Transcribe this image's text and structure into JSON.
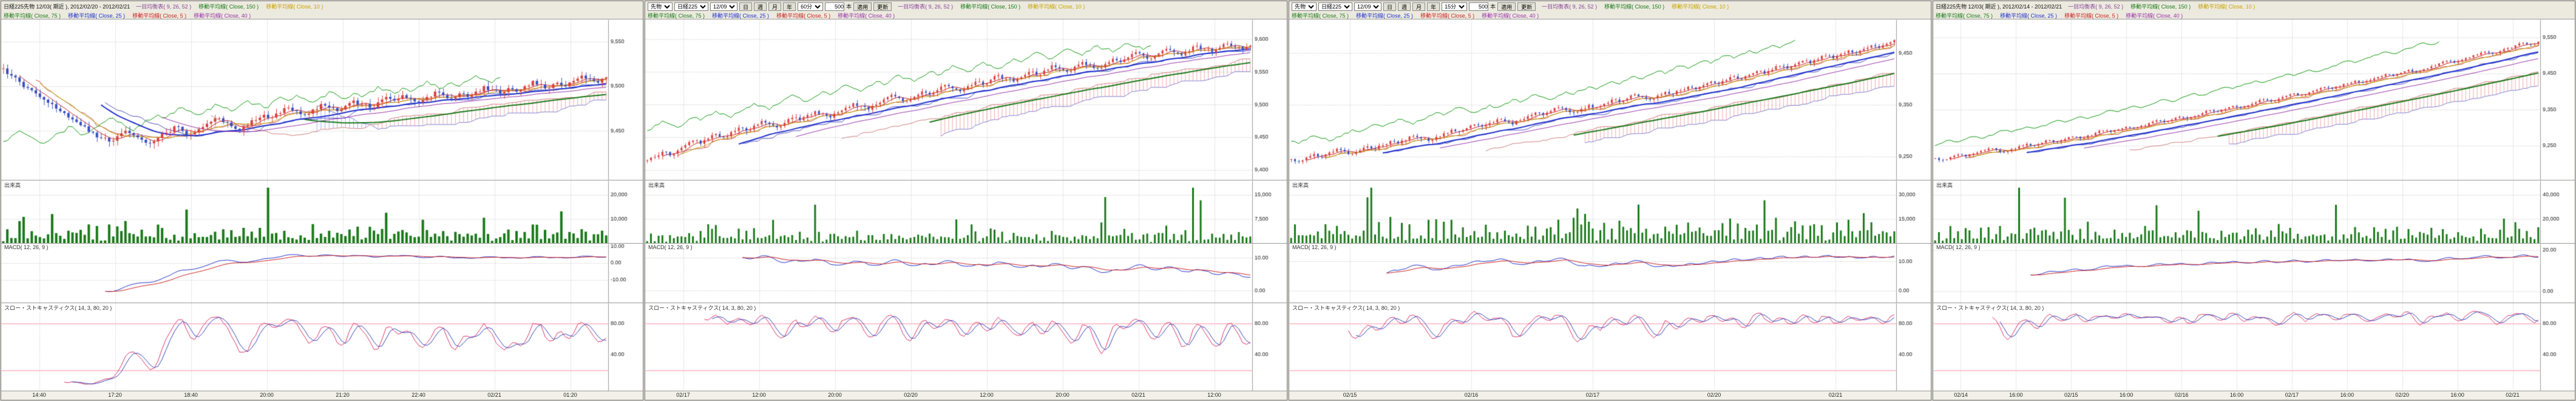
{
  "app": {
    "background": "#cfccc3"
  },
  "colors": {
    "chart_bg": "#ffffff",
    "grid": "#b8b8b8",
    "candle_up": "#d94040",
    "candle_down": "#3b4fc0",
    "cloud_up": "rgba(220,70,70,0.45)",
    "cloud_down": "rgba(70,70,220,0.45)",
    "volume": "#1a7a1a",
    "macd_line": "#2233cc",
    "macd_signal": "#cc2222",
    "stoch_k": "#dd3366",
    "stoch_d": "#3344bb",
    "stoch_level": "#ff8fa3",
    "axis_text": "#222222"
  },
  "ma_lines": [
    {
      "period": 5,
      "color": "#cc2222",
      "width": 1
    },
    {
      "period": 10,
      "color": "#c8a400",
      "width": 1
    },
    {
      "period": 25,
      "color": "#2233cc",
      "width": 2
    },
    {
      "period": 40,
      "color": "#9933aa",
      "width": 1
    },
    {
      "period": 75,
      "color": "#1a7a1a",
      "width": 2
    }
  ],
  "ichimoku": {
    "tenkan": 9,
    "kijun": 26,
    "senkou": 52,
    "colors": {
      "tenkan": "#c05050",
      "kijun": "#5050c0",
      "chikou": "#119911",
      "spanA": "#d08080",
      "spanB": "#8080d0"
    }
  },
  "pane_labels": {
    "volume": "出来高",
    "macd": "MACD( 12, 26, 9 )",
    "stoch": "スロー・ストキャスティクス( 14, 3, 80, 20 )"
  },
  "panels": [
    {
      "title": "日経225先物 12/03( 期近 ), 2012/02/20 - 2012/02/21",
      "toolbar": null,
      "legend_row1": [
        {
          "label": "一目均衡表( 9, 26, 52 )",
          "color": "#884499"
        },
        {
          "label": "移動平均線( Close, 150 )",
          "color": "#1a7a1a"
        },
        {
          "label": "移動平均線( Close, 10 )",
          "color": "#c8a400"
        }
      ],
      "legend_row2": [
        {
          "label": "移動平均線( Close, 75 )",
          "color": "#1a7a1a"
        },
        {
          "label": "移動平均線( Close, 25 )",
          "color": "#2233cc"
        },
        {
          "label": "移動平均線( Close, 5 )",
          "color": "#cc2222"
        },
        {
          "label": "移動平均線( Close, 40 )",
          "color": "#9933aa"
        }
      ],
      "chart_data": {
        "type": "candlestick",
        "x_labels": [
          "14:40",
          "17:20",
          "18:40",
          "20:00",
          "21:20",
          "22:40",
          "02/21",
          "01:20"
        ],
        "y_domain": [
          9395,
          9575
        ],
        "y_ticks": [
          9550,
          9500,
          9450
        ],
        "closes": [
          9520,
          9512,
          9505,
          9498,
          9492,
          9485,
          9480,
          9472,
          9465,
          9460,
          9455,
          9448,
          9442,
          9438,
          9444,
          9450,
          9445,
          9440,
          9436,
          9442,
          9448,
          9455,
          9450,
          9446,
          9452,
          9458,
          9464,
          9460,
          9455,
          9450,
          9456,
          9462,
          9468,
          9465,
          9470,
          9476,
          9472,
          9468,
          9474,
          9480,
          9476,
          9472,
          9478,
          9484,
          9480,
          9476,
          9482,
          9488,
          9484,
          9490,
          9486,
          9482,
          9488,
          9494,
          9490,
          9486,
          9492,
          9488,
          9494,
          9500,
          9496,
          9492,
          9498,
          9494,
          9500,
          9506,
          9502,
          9498,
          9504,
          9500,
          9506,
          9512,
          9508,
          9504,
          9510
        ],
        "volume_ticks": [
          20000,
          10000
        ],
        "macd_ticks": [
          10,
          0,
          -10
        ],
        "stoch_ticks": [
          80,
          40
        ],
        "stoch_levels": [
          80,
          20
        ]
      }
    },
    {
      "title": null,
      "toolbar": {
        "selects": [
          "先物",
          "日経225",
          "12/09"
        ],
        "period_buttons": [
          "日",
          "週",
          "月",
          "年"
        ],
        "interval": "60分",
        "bars_value": "500",
        "bars_unit": "本",
        "buttons": [
          "適用",
          "更新"
        ]
      },
      "legend_row1": [
        {
          "label": "一目均衡表( 9, 26, 52 )",
          "color": "#884499"
        },
        {
          "label": "移動平均線( Close, 150 )",
          "color": "#1a7a1a"
        },
        {
          "label": "移動平均線( Close, 10 )",
          "color": "#c8a400"
        }
      ],
      "legend_row2": [
        {
          "label": "移動平均線( Close, 75 )",
          "color": "#1a7a1a"
        },
        {
          "label": "移動平均線( Close, 25 )",
          "color": "#2233cc"
        },
        {
          "label": "移動平均線( Close, 5 )",
          "color": "#cc2222"
        },
        {
          "label": "移動平均線( Close, 40 )",
          "color": "#9933aa"
        }
      ],
      "chart_data": {
        "type": "candlestick",
        "x_labels": [
          "02/17",
          "12:00",
          "20:00",
          "02/20",
          "12:00",
          "20:00",
          "02/21",
          "12:00"
        ],
        "y_domain": [
          9385,
          9630
        ],
        "y_ticks": [
          9600,
          9550,
          9500,
          9450,
          9400
        ],
        "closes": [
          9415,
          9420,
          9428,
          9422,
          9430,
          9438,
          9445,
          9440,
          9448,
          9455,
          9450,
          9458,
          9465,
          9460,
          9468,
          9475,
          9470,
          9465,
          9472,
          9480,
          9476,
          9484,
          9490,
          9486,
          9480,
          9488,
          9495,
          9502,
          9498,
          9492,
          9500,
          9508,
          9515,
          9510,
          9505,
          9512,
          9520,
          9515,
          9522,
          9530,
          9525,
          9520,
          9528,
          9535,
          9530,
          9538,
          9545,
          9540,
          9535,
          9542,
          9550,
          9545,
          9552,
          9560,
          9555,
          9550,
          9558,
          9565,
          9560,
          9555,
          9562,
          9570,
          9565,
          9572,
          9580,
          9575,
          9570,
          9578,
          9585,
          9580,
          9575,
          9582,
          9590,
          9585,
          9580,
          9587,
          9593,
          9588,
          9584,
          9590
        ],
        "volume_ticks": [
          15000,
          7500
        ],
        "macd_ticks": [
          10,
          0,
          -10
        ],
        "stoch_ticks": [
          80,
          40
        ],
        "stoch_levels": [
          80,
          20
        ]
      }
    },
    {
      "title": null,
      "toolbar": {
        "selects": [
          "先物",
          "日経225",
          "12/09"
        ],
        "period_buttons": [
          "日",
          "週",
          "月",
          "年"
        ],
        "interval": "15分",
        "bars_value": "500",
        "bars_unit": "本",
        "buttons": [
          "適用",
          "更新"
        ]
      },
      "legend_row1": [
        {
          "label": "一目均衡表( 9, 26, 52 )",
          "color": "#884499"
        },
        {
          "label": "移動平均線( Close, 150 )",
          "color": "#1a7a1a"
        },
        {
          "label": "移動平均線( Close, 10 )",
          "color": "#c8a400"
        }
      ],
      "legend_row2": [
        {
          "label": "移動平均線( Close, 75 )",
          "color": "#1a7a1a"
        },
        {
          "label": "移動平均線( Close, 25 )",
          "color": "#2233cc"
        },
        {
          "label": "移動平均線( Close, 5 )",
          "color": "#cc2222"
        },
        {
          "label": "移動平均線( Close, 40 )",
          "color": "#9933aa"
        }
      ],
      "chart_data": {
        "type": "candlestick",
        "x_labels": [
          "02/15",
          "02/16",
          "02/17",
          "02/20",
          "02/21"
        ],
        "y_domain": [
          9205,
          9515
        ],
        "y_ticks": [
          9450,
          9350,
          9250
        ],
        "closes": [
          9245,
          9240,
          9248,
          9255,
          9250,
          9258,
          9265,
          9260,
          9255,
          9262,
          9270,
          9265,
          9272,
          9280,
          9275,
          9282,
          9290,
          9285,
          9280,
          9288,
          9295,
          9302,
          9298,
          9305,
          9312,
          9308,
          9315,
          9322,
          9318,
          9312,
          9320,
          9328,
          9335,
          9330,
          9338,
          9345,
          9340,
          9335,
          9342,
          9350,
          9345,
          9352,
          9360,
          9355,
          9362,
          9370,
          9365,
          9360,
          9368,
          9375,
          9370,
          9378,
          9385,
          9380,
          9388,
          9395,
          9390,
          9398,
          9405,
          9400,
          9408,
          9415,
          9410,
          9418,
          9425,
          9420,
          9428,
          9435,
          9430,
          9438,
          9445,
          9440,
          9448,
          9455,
          9450,
          9458,
          9465,
          9460,
          9468,
          9475
        ],
        "volume_ticks": [
          30000,
          15000
        ],
        "macd_ticks": [
          10,
          0,
          -10
        ],
        "stoch_ticks": [
          80,
          40
        ],
        "stoch_levels": [
          80,
          20
        ]
      }
    },
    {
      "title": "日経225先物 12/03( 期近 ), 2012/02/14 - 2012/02/21",
      "toolbar": null,
      "legend_row1": [
        {
          "label": "一目均衡表( 9, 26, 52 )",
          "color": "#884499"
        },
        {
          "label": "移動平均線( Close, 150 )",
          "color": "#1a7a1a"
        },
        {
          "label": "移動平均線( Close, 10 )",
          "color": "#c8a400"
        }
      ],
      "legend_row2": [
        {
          "label": "移動平均線( Close, 75 )",
          "color": "#1a7a1a"
        },
        {
          "label": "移動平均線( Close, 25 )",
          "color": "#2233cc"
        },
        {
          "label": "移動平均線( Close, 5 )",
          "color": "#cc2222"
        },
        {
          "label": "移動平均線( Close, 40 )",
          "color": "#9933aa"
        }
      ],
      "chart_data": {
        "type": "candlestick",
        "x_labels": [
          "02/14",
          "16:00",
          "02/15",
          "16:00",
          "02/16",
          "16:00",
          "02/17",
          "16:00",
          "02/20",
          "16:00",
          "02/21"
        ],
        "y_domain": [
          9155,
          9600
        ],
        "y_ticks": [
          9550,
          9450,
          9350,
          9250
        ],
        "closes": [
          9215,
          9210,
          9218,
          9225,
          9220,
          9228,
          9235,
          9242,
          9238,
          9232,
          9240,
          9248,
          9255,
          9250,
          9258,
          9265,
          9260,
          9268,
          9275,
          9270,
          9278,
          9285,
          9292,
          9288,
          9295,
          9302,
          9298,
          9305,
          9312,
          9320,
          9315,
          9322,
          9330,
          9325,
          9332,
          9340,
          9348,
          9344,
          9352,
          9360,
          9355,
          9362,
          9370,
          9378,
          9372,
          9380,
          9388,
          9395,
          9390,
          9398,
          9405,
          9412,
          9408,
          9415,
          9422,
          9430,
          9425,
          9432,
          9440,
          9448,
          9444,
          9452,
          9460,
          9455,
          9462,
          9470,
          9478,
          9485,
          9480,
          9488,
          9495,
          9502,
          9510,
          9505,
          9512,
          9520,
          9528,
          9535,
          9530,
          9538
        ],
        "volume_ticks": [
          40000,
          20000
        ],
        "macd_ticks": [
          20,
          0,
          -20
        ],
        "stoch_ticks": [
          80,
          40
        ],
        "stoch_levels": [
          80,
          20
        ]
      }
    }
  ]
}
